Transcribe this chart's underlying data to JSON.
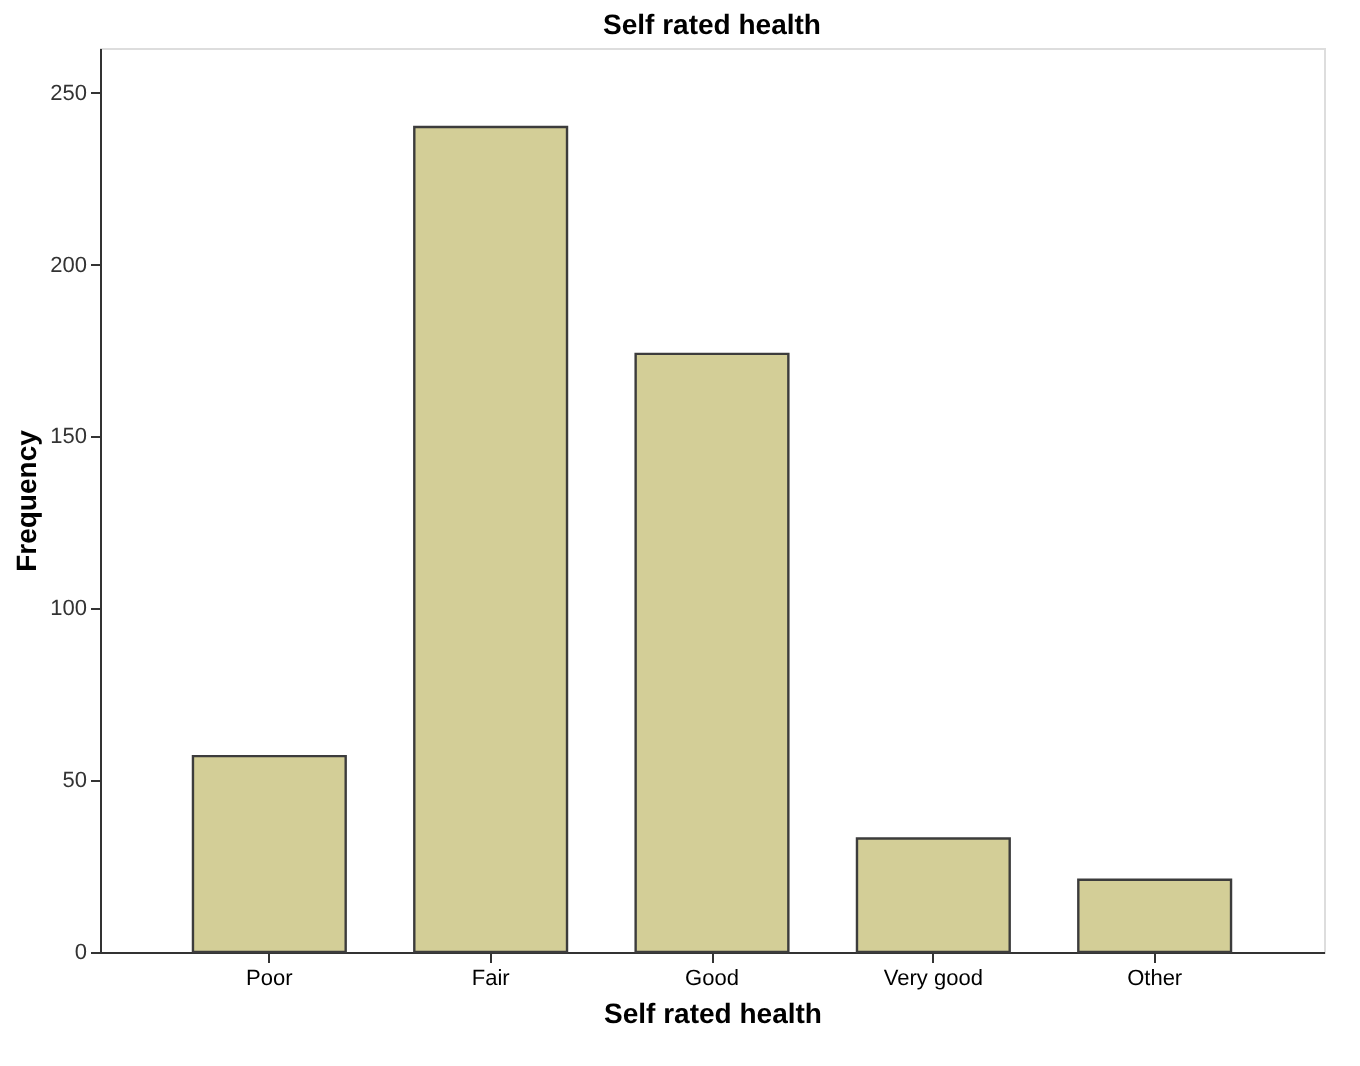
{
  "chart_data": {
    "type": "bar",
    "title": "Self rated health",
    "xlabel": "Self rated health",
    "ylabel": "Frequency",
    "categories": [
      "Poor",
      "Fair",
      "Good",
      "Very good",
      "Other"
    ],
    "values": [
      57,
      240,
      174,
      33,
      21
    ],
    "color": "#d3ce97",
    "ylim": [
      0,
      263
    ],
    "yticks": [
      0,
      50,
      100,
      150,
      200,
      250
    ],
    "grid": false
  }
}
